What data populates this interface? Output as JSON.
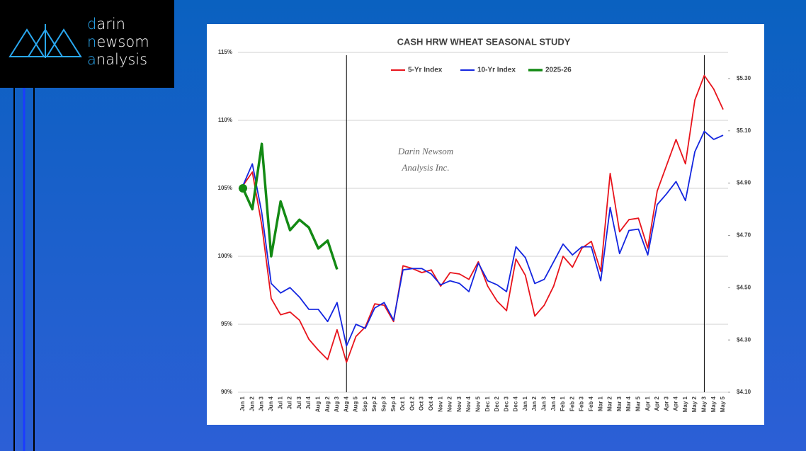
{
  "logo": [
    "darin",
    "newsom",
    "analysis"
  ],
  "chart_data": {
    "type": "line",
    "title": "CASH HRW WHEAT SEASONAL STUDY",
    "watermark": [
      "Darin Newsom",
      "Analysis Inc."
    ],
    "categories": [
      "Jun 1",
      "Jun 2",
      "Jun 3",
      "Jun 4",
      "Jul 1",
      "Jul 2",
      "Jul 3",
      "Jul 4",
      "Aug 1",
      "Aug 2",
      "Aug 3",
      "Aug 4",
      "Aug 5",
      "Sep 1",
      "Sep 2",
      "Sep 3",
      "Sep 4",
      "Oct 1",
      "Oct 2",
      "Oct 3",
      "Oct 4",
      "Nov 1",
      "Nov 2",
      "Nov 3",
      "Nov 4",
      "Nov 5",
      "Dec 1",
      "Dec 2",
      "Dec 3",
      "Dec 4",
      "Jan 1",
      "Jan 2",
      "Jan 3",
      "Jan 4",
      "Feb 1",
      "Feb 2",
      "Feb 3",
      "Feb 4",
      "Mar 1",
      "Mar 2",
      "Mar 3",
      "Mar 4",
      "Mar 5",
      "Apr 1",
      "Apr 2",
      "Apr 3",
      "Apr 4",
      "May 1",
      "May 2",
      "May 3",
      "May 4",
      "May 5"
    ],
    "series": [
      {
        "name": "5-Yr Index",
        "color": "#e8141c",
        "values": [
          105.2,
          106.2,
          102.3,
          96.9,
          95.7,
          95.9,
          95.3,
          93.9,
          93.1,
          92.4,
          94.6,
          92.2,
          94.1,
          94.8,
          96.5,
          96.4,
          95.2,
          99.3,
          99.1,
          98.8,
          99.0,
          97.8,
          98.8,
          98.7,
          98.3,
          99.6,
          97.8,
          96.7,
          96.0,
          99.8,
          98.6,
          95.6,
          96.4,
          97.8,
          100.0,
          99.2,
          100.6,
          101.1,
          98.9,
          106.1,
          101.8,
          102.7,
          102.8,
          100.6,
          104.8,
          106.7,
          108.6,
          106.8,
          111.5,
          113.3,
          112.3,
          110.8
        ]
      },
      {
        "name": "10-Yr Index",
        "color": "#1426e0",
        "values": [
          105.2,
          106.8,
          103.2,
          98.0,
          97.3,
          97.7,
          97.0,
          96.1,
          96.1,
          95.2,
          96.6,
          93.4,
          95.0,
          94.7,
          96.2,
          96.6,
          95.3,
          99.0,
          99.1,
          99.1,
          98.7,
          97.9,
          98.2,
          98.0,
          97.4,
          99.5,
          98.2,
          97.9,
          97.4,
          100.7,
          99.9,
          98.0,
          98.3,
          99.6,
          100.9,
          100.1,
          100.7,
          100.7,
          98.2,
          103.6,
          100.2,
          101.9,
          102.0,
          100.1,
          103.8,
          104.6,
          105.5,
          104.1,
          107.7,
          109.2,
          108.6,
          108.9
        ]
      },
      {
        "name": "2025-26",
        "color": "#138a14",
        "axis": "y2",
        "values": [
          4.88,
          4.8,
          5.05,
          4.62,
          4.83,
          4.72,
          4.76,
          4.73,
          4.65,
          4.68,
          4.57,
          null,
          null,
          null,
          null,
          null,
          null,
          null,
          null,
          null,
          null,
          null,
          null,
          null,
          null,
          null,
          null,
          null,
          null,
          null,
          null,
          null,
          null,
          null,
          null,
          null,
          null,
          null,
          null,
          null,
          null,
          null,
          null,
          null,
          null,
          null,
          null,
          null,
          null,
          null,
          null,
          null
        ]
      }
    ],
    "vlines": [
      "Aug 4",
      "May 3"
    ],
    "ylim": [
      90,
      115
    ],
    "yticks": [
      {
        "value": 90,
        "label": "90%"
      },
      {
        "value": 95,
        "label": "95%"
      },
      {
        "value": 100,
        "label": "100%"
      },
      {
        "value": 105,
        "label": "105%"
      },
      {
        "value": 110,
        "label": "110%"
      },
      {
        "value": 115,
        "label": "115%"
      }
    ],
    "y2lim": [
      4.1,
      5.4
    ],
    "y2ticks": [
      {
        "value": 4.1,
        "label": "$4.10"
      },
      {
        "value": 4.3,
        "label": "$4.30"
      },
      {
        "value": 4.5,
        "label": "$4.50"
      },
      {
        "value": 4.7,
        "label": "$4.70"
      },
      {
        "value": 4.9,
        "label": "$4.90"
      },
      {
        "value": 5.1,
        "label": "$5.10"
      },
      {
        "value": 5.3,
        "label": "$5.30"
      }
    ],
    "grid": true,
    "legend": "top"
  }
}
